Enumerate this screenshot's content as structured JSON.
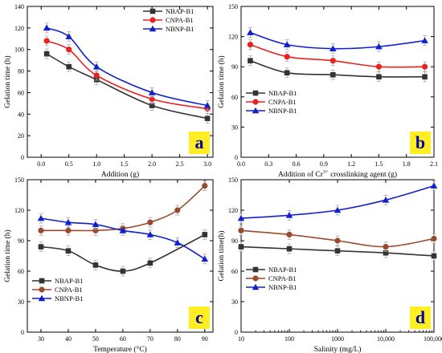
{
  "chart_data": [
    {
      "type": "line",
      "panel_label": "a",
      "xlabel": "Addition (g)",
      "ylabel": "Gelation time (h)",
      "xlim": [
        -0.25,
        3.1
      ],
      "ylim": [
        0,
        140
      ],
      "xticks": [
        "0.0",
        "0.5",
        "1.0",
        "1.5",
        "2.0",
        "2.5",
        "3.0"
      ],
      "xtick_values": [
        0,
        0.5,
        1,
        1.5,
        2,
        2.5,
        3
      ],
      "yticks": [
        "0",
        "20",
        "40",
        "60",
        "80",
        "100",
        "120",
        "140"
      ],
      "ytick_values": [
        0,
        20,
        40,
        60,
        80,
        100,
        120,
        140
      ],
      "legend_position": "top-right",
      "grid": false,
      "series": [
        {
          "name": "NBAP-B1",
          "color": "#333333",
          "marker": "square",
          "x": [
            0.1,
            0.5,
            1.0,
            2.0,
            3.0
          ],
          "y": [
            96,
            84,
            72,
            48,
            36
          ]
        },
        {
          "name": "CNPA-B1",
          "color": "#e8231f",
          "marker": "circle",
          "x": [
            0.1,
            0.5,
            1.0,
            2.0,
            3.0
          ],
          "y": [
            108,
            100,
            76,
            54,
            45
          ]
        },
        {
          "name": "NBNP-B1",
          "color": "#1020cc",
          "marker": "triangle",
          "x": [
            0.1,
            0.5,
            1.0,
            2.0,
            3.0
          ],
          "y": [
            120,
            112,
            84,
            60,
            48
          ]
        }
      ]
    },
    {
      "type": "line",
      "panel_label": "b",
      "xlabel_pre": "Addition of Cr",
      "xlabel_sup": "3+",
      "xlabel_post": " crosslinking agent (g)",
      "ylabel": "Gelation time (h)",
      "xlim": [
        0,
        2.1
      ],
      "ylim": [
        0,
        150
      ],
      "xticks": [
        "0.0",
        "0.3",
        "0.6",
        "0.9",
        "1.2",
        "1.5",
        "1.8",
        "2.1"
      ],
      "xtick_values": [
        0,
        0.3,
        0.6,
        0.9,
        1.2,
        1.5,
        1.8,
        2.1
      ],
      "yticks": [
        "0",
        "30",
        "60",
        "90",
        "120",
        "150"
      ],
      "ytick_values": [
        0,
        30,
        60,
        90,
        120,
        150
      ],
      "legend_position": "center-left",
      "grid": false,
      "series": [
        {
          "name": "NBAP-B1",
          "color": "#333333",
          "marker": "square",
          "x": [
            0.1,
            0.5,
            1.0,
            1.5,
            2.0
          ],
          "y": [
            96,
            84,
            82,
            80,
            80
          ]
        },
        {
          "name": "CNPA-B1",
          "color": "#e8231f",
          "marker": "circle",
          "x": [
            0.1,
            0.5,
            1.0,
            1.5,
            2.0
          ],
          "y": [
            112,
            100,
            96,
            90,
            90
          ]
        },
        {
          "name": "NBNP-B1",
          "color": "#1020cc",
          "marker": "triangle",
          "x": [
            0.1,
            0.5,
            1.0,
            1.5,
            2.0
          ],
          "y": [
            124,
            112,
            108,
            110,
            116
          ]
        }
      ]
    },
    {
      "type": "line",
      "panel_label": "c",
      "xlabel": "Temperature (°C)",
      "ylabel": "Gelation time (h)",
      "xlim": [
        25,
        93
      ],
      "ylim": [
        0,
        150
      ],
      "xticks": [
        "30",
        "40",
        "50",
        "60",
        "70",
        "80",
        "90"
      ],
      "xtick_values": [
        30,
        40,
        50,
        60,
        70,
        80,
        90
      ],
      "yticks": [
        "0",
        "30",
        "60",
        "90",
        "120",
        "150"
      ],
      "ytick_values": [
        0,
        30,
        60,
        90,
        120,
        150
      ],
      "legend_position": "bottom-left",
      "grid": false,
      "series": [
        {
          "name": "NBAP-B1",
          "color": "#333333",
          "marker": "square",
          "x": [
            30,
            40,
            50,
            60,
            70,
            90
          ],
          "y": [
            84,
            80,
            66,
            60,
            68,
            96
          ]
        },
        {
          "name": "CNPA-B1",
          "color": "#9a4a2e",
          "marker": "circle",
          "x": [
            30,
            40,
            50,
            60,
            70,
            80,
            90
          ],
          "y": [
            100,
            100,
            100,
            102,
            108,
            120,
            144
          ]
        },
        {
          "name": "NBNP-B1",
          "color": "#1020cc",
          "marker": "triangle",
          "x": [
            30,
            40,
            50,
            60,
            70,
            80,
            90
          ],
          "y": [
            112,
            108,
            106,
            100,
            96,
            88,
            72
          ]
        }
      ]
    },
    {
      "type": "line",
      "panel_label": "d",
      "xlabel": "Salinity  (mg/L)",
      "ylabel": "Gelation time(h)",
      "xscale": "log",
      "xlim": [
        10,
        100000
      ],
      "ylim": [
        0,
        150
      ],
      "xticks": [
        "10",
        "100",
        "1000",
        "10,000",
        "100,000"
      ],
      "xtick_values": [
        10,
        100,
        1000,
        10000,
        100000
      ],
      "yticks": [
        "0",
        "30",
        "60",
        "90",
        "120",
        "150"
      ],
      "ytick_values": [
        0,
        30,
        60,
        90,
        120,
        150
      ],
      "legend_position": "center-left",
      "grid": false,
      "series": [
        {
          "name": "NBAP-B1",
          "color": "#333333",
          "marker": "square",
          "x": [
            10,
            100,
            1000,
            10000,
            100000
          ],
          "y": [
            84,
            82,
            80,
            78,
            75
          ]
        },
        {
          "name": "CNPA-B1",
          "color": "#9a4a2e",
          "marker": "circle",
          "x": [
            10,
            100,
            1000,
            10000,
            100000
          ],
          "y": [
            100,
            96,
            90,
            84,
            92
          ]
        },
        {
          "name": "NBNP-B1",
          "color": "#1020cc",
          "marker": "triangle",
          "x": [
            10,
            100,
            1000,
            10000,
            100000
          ],
          "y": [
            112,
            115,
            120,
            130,
            144
          ]
        }
      ]
    }
  ]
}
